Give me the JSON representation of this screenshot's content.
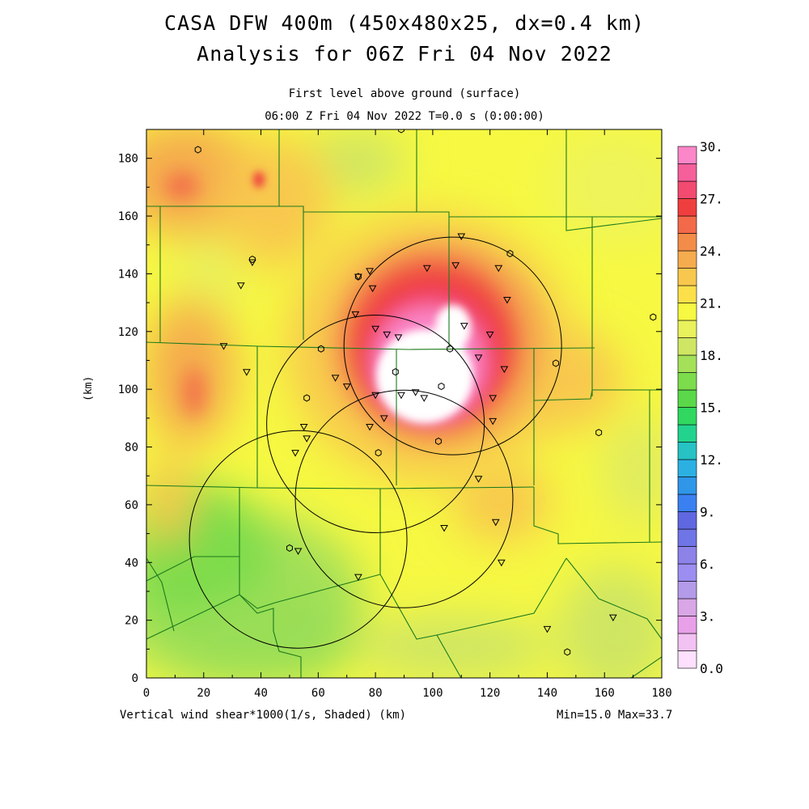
{
  "title": "CASA DFW 400m (450x480x25, dx=0.4 km)",
  "subtitle": "Analysis for 06Z Fri 04 Nov 2022",
  "level": "First level above ground (surface)",
  "time": "06:00 Z Fri 04 Nov 2022    T=0.0 s (0:00:00)",
  "field_label": "Vertical wind shear*1000(1/s, Shaded)  (km)",
  "minmax": "Min=15.0 Max=33.7",
  "y_axis_label": "(km)",
  "x_ticks": [
    "0",
    "20",
    "40",
    "60",
    "80",
    "100",
    "120",
    "140",
    "160",
    "180"
  ],
  "y_ticks": [
    "0",
    "20",
    "40",
    "60",
    "80",
    "100",
    "120",
    "140",
    "160",
    "180"
  ],
  "colorbar": {
    "labels": [
      "0.0",
      "3.",
      "6.",
      "9.",
      "12.",
      "15.",
      "18.",
      "21.",
      "24.",
      "27.",
      "30."
    ],
    "colors": [
      "#fde0fd",
      "#f2c2f2",
      "#e8a0e8",
      "#d9a6e6",
      "#b49bea",
      "#9c8ef0",
      "#8c82e8",
      "#6f74e6",
      "#5f68e0",
      "#3a80f0",
      "#2f96e8",
      "#2cb0e2",
      "#26c2c4",
      "#22d38e",
      "#30d860",
      "#5ad84a",
      "#7cdc4c",
      "#a4e058",
      "#cfe664",
      "#e9f25c",
      "#f6f842",
      "#fbe04a",
      "#f8c84e",
      "#f5ac4e",
      "#f28c48",
      "#f26a4a",
      "#ef3e3e",
      "#f24a70",
      "#f5609a",
      "#fb86c8"
    ]
  },
  "colors": {
    "white_core": "#ffffff",
    "pink_light": "#fb86c8",
    "pink": "#f5609a",
    "red": "#ef3e3e",
    "orange": "#f5ac4e",
    "yellow": "#f6f842",
    "lime": "#cfe664",
    "green": "#7cdc4c"
  },
  "chart_data": {
    "type": "heatmap",
    "field": "Vertical wind shear*1000 (1/s)",
    "units": "km",
    "xlim": [
      0,
      180
    ],
    "ylim": [
      0,
      190
    ],
    "value_range": [
      15.0,
      33.7
    ],
    "max_area_center_km": [
      100,
      105
    ],
    "radar_circles_center_km": [
      {
        "x": 107,
        "y": 115,
        "r": 38
      },
      {
        "x": 80,
        "y": 88,
        "r": 38
      },
      {
        "x": 53,
        "y": 48,
        "r": 38
      },
      {
        "x": 90,
        "y": 62,
        "r": 38
      }
    ],
    "stations_triangle": [
      [
        27,
        115
      ],
      [
        35,
        106
      ],
      [
        33,
        136
      ],
      [
        37,
        144
      ],
      [
        74,
        139
      ],
      [
        78,
        141
      ],
      [
        79,
        135
      ],
      [
        73,
        126
      ],
      [
        80,
        121
      ],
      [
        84,
        119
      ],
      [
        88,
        118
      ],
      [
        98,
        142
      ],
      [
        108,
        143
      ],
      [
        110,
        153
      ],
      [
        123,
        142
      ],
      [
        111,
        122
      ],
      [
        120,
        119
      ],
      [
        116,
        111
      ],
      [
        125,
        107
      ],
      [
        126,
        131
      ],
      [
        66,
        104
      ],
      [
        70,
        101
      ],
      [
        80,
        98
      ],
      [
        83,
        90
      ],
      [
        89,
        98
      ],
      [
        94,
        99
      ],
      [
        78,
        87
      ],
      [
        97,
        97
      ],
      [
        55,
        87
      ],
      [
        56,
        83
      ],
      [
        52,
        78
      ],
      [
        121,
        97
      ],
      [
        121,
        89
      ],
      [
        116,
        69
      ],
      [
        122,
        54
      ],
      [
        104,
        52
      ],
      [
        124,
        40
      ],
      [
        53,
        44
      ],
      [
        74,
        35
      ],
      [
        140,
        17
      ],
      [
        163,
        21
      ]
    ],
    "stations_circle": [
      [
        18,
        183
      ],
      [
        37,
        145
      ],
      [
        61,
        114
      ],
      [
        56,
        97
      ],
      [
        74,
        139
      ],
      [
        87,
        106
      ],
      [
        103,
        101
      ],
      [
        106,
        114
      ],
      [
        127,
        147
      ],
      [
        81,
        78
      ],
      [
        102,
        82
      ],
      [
        143,
        109
      ],
      [
        158,
        85
      ],
      [
        177,
        125
      ],
      [
        50,
        45
      ],
      [
        147,
        9
      ],
      [
        89,
        190
      ]
    ]
  }
}
